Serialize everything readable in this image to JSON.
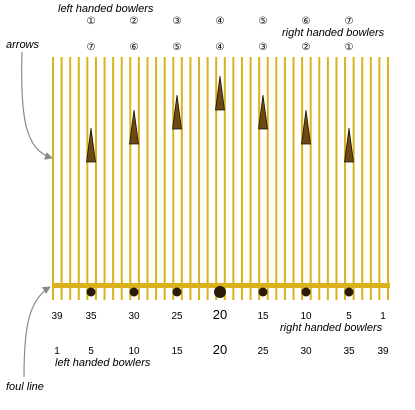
{
  "labels": {
    "arrows": "arrows",
    "foul_line": "foul line",
    "left_handed_top": "left handed bowlers",
    "right_handed_top": "right handed bowlers",
    "right_handed_bottom": "right handed bowlers",
    "left_handed_bottom": "left handed bowlers"
  },
  "arrow_numbers_left": [
    "①",
    "②",
    "③",
    "④",
    "⑤",
    "⑥",
    "⑦"
  ],
  "arrow_numbers_right": [
    "⑦",
    "⑥",
    "⑤",
    "④",
    "③",
    "②",
    "①"
  ],
  "board_numbers_right": [
    "39",
    "35",
    "30",
    "25",
    "20",
    "15",
    "10",
    "5",
    "1"
  ],
  "board_numbers_left": [
    "1",
    "5",
    "10",
    "15",
    "20",
    "25",
    "30",
    "35",
    "39"
  ],
  "colors": {
    "board": "#dcb21c",
    "arrow_fill": "#6b4a14",
    "arrow_outline": "#1a1204",
    "dot": "#2a1a0a",
    "pointer": "#8a8a8a"
  }
}
